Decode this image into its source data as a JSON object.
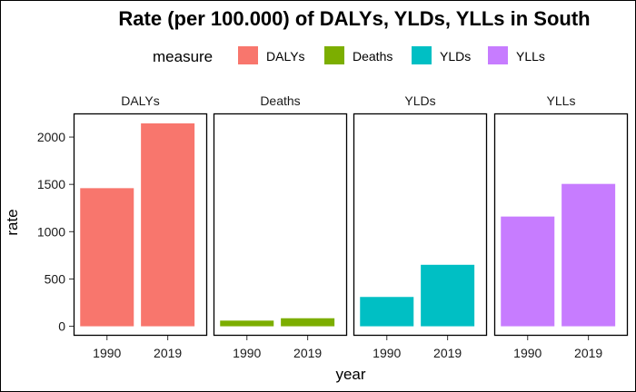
{
  "chart_data": {
    "type": "bar",
    "title": "Rate (per 100.000) of DALYs, YLDs, YLLs in South",
    "xlabel": "year",
    "ylabel": "rate",
    "legend_title": "measure",
    "legend_position": "top",
    "categories": [
      "1990",
      "2019"
    ],
    "facets": [
      "DALYs",
      "Deaths",
      "YLDs",
      "YLLs"
    ],
    "ylim": [
      -100,
      2250
    ],
    "yticks": [
      0,
      500,
      1000,
      1500,
      2000
    ],
    "grid": false,
    "series": [
      {
        "name": "DALYs",
        "color": "#F8766D",
        "values": [
          1460,
          2145
        ]
      },
      {
        "name": "Deaths",
        "color": "#7CAE00",
        "values": [
          60,
          85
        ]
      },
      {
        "name": "YLDs",
        "color": "#00BFC4",
        "values": [
          310,
          650
        ]
      },
      {
        "name": "YLLs",
        "color": "#C77CFF",
        "values": [
          1160,
          1505
        ]
      }
    ]
  }
}
